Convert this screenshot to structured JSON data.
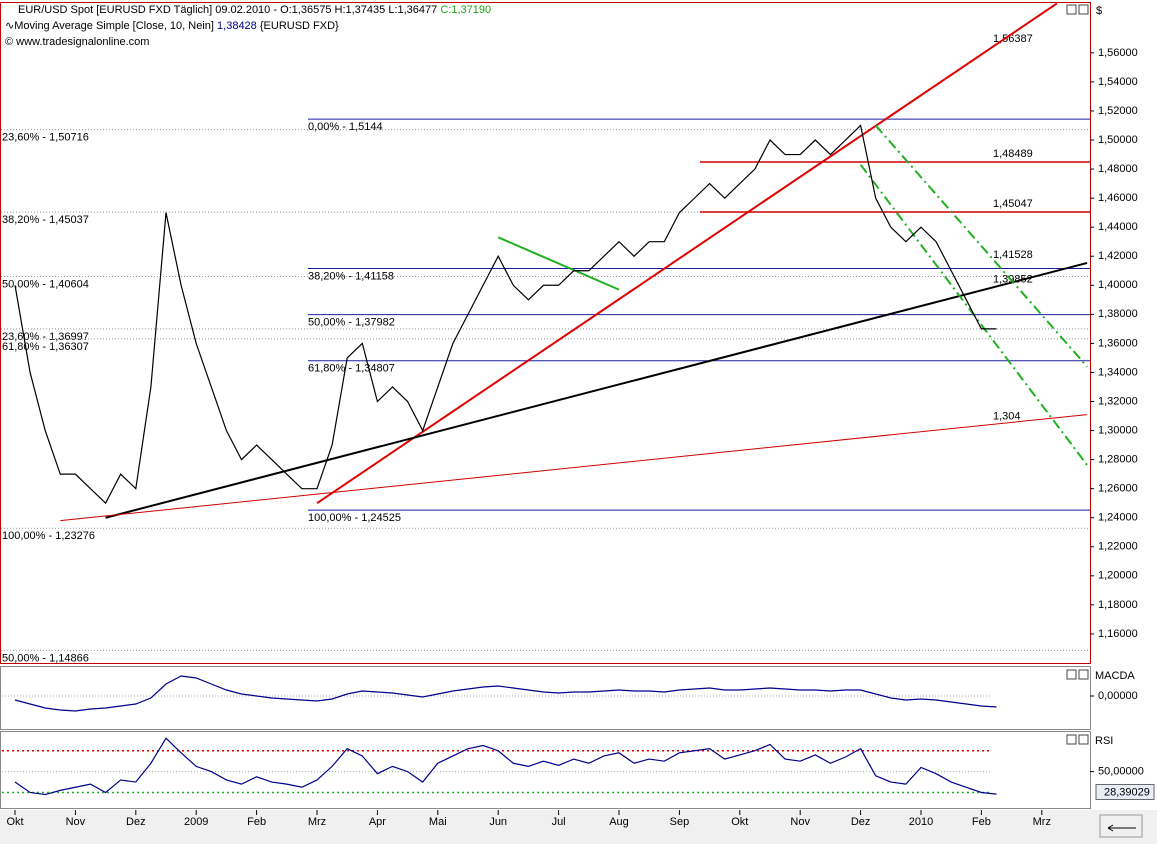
{
  "header": {
    "line1": "EUR/USD Spot [EURUSD FXD  Täglich] 09.02.2010 - O:1,36575 H:1,37435 L:1,36477",
    "close": "C:1,37190",
    "line2": "Moving Average Simple [Close, 10, Nein]",
    "ma_value": "1,38428",
    "ma_source": "{EURUSD FXD}",
    "line3": "© www.tradesignalonline.com",
    "unit": "$"
  },
  "chart_data": [
    {
      "type": "line",
      "categories": [
        "Okt",
        null,
        null,
        null,
        "Nov",
        null,
        null,
        null,
        "Dez",
        null,
        null,
        null,
        "2009",
        null,
        null,
        null,
        "Feb",
        null,
        null,
        null,
        "Mrz",
        null,
        null,
        null,
        "Apr",
        null,
        null,
        null,
        "Mai",
        null,
        null,
        null,
        "Jun",
        null,
        null,
        null,
        "Jul",
        null,
        null,
        null,
        "Aug",
        null,
        null,
        null,
        "Sep",
        null,
        null,
        null,
        "Okt",
        null,
        null,
        null,
        "Nov",
        null,
        null,
        null,
        "Dez",
        null,
        null,
        null,
        "2010",
        null,
        null,
        null,
        "Feb",
        null,
        null,
        null,
        "Mrz",
        null,
        null,
        null
      ],
      "series": [
        {
          "color": "#000000",
          "values": [
            1.4,
            1.34,
            1.3,
            1.27,
            1.27,
            1.26,
            1.25,
            1.27,
            1.26,
            1.33,
            1.45,
            1.4,
            1.36,
            1.33,
            1.3,
            1.28,
            1.29,
            1.28,
            1.27,
            1.26,
            1.26,
            1.29,
            1.35,
            1.36,
            1.32,
            1.33,
            1.32,
            1.3,
            1.33,
            1.36,
            1.38,
            1.4,
            1.42,
            1.4,
            1.39,
            1.4,
            1.4,
            1.41,
            1.41,
            1.42,
            1.43,
            1.42,
            1.43,
            1.43,
            1.45,
            1.46,
            1.47,
            1.46,
            1.47,
            1.48,
            1.5,
            1.49,
            1.49,
            1.5,
            1.49,
            1.5,
            1.51,
            1.46,
            1.44,
            1.43,
            1.44,
            1.43,
            1.41,
            1.39,
            1.37,
            1.37,
            null,
            null,
            null,
            null,
            null,
            null
          ]
        }
      ],
      "ylim": [
        1.14,
        1.595
      ],
      "yticks": [
        {
          "value": 1.16,
          "label": "1,16000"
        },
        {
          "value": 1.18,
          "label": "1,18000"
        },
        {
          "value": 1.2,
          "label": "1,20000"
        },
        {
          "value": 1.22,
          "label": "1,22000"
        },
        {
          "value": 1.24,
          "label": "1,24000"
        },
        {
          "value": 1.26,
          "label": "1,26000"
        },
        {
          "value": 1.28,
          "label": "1,28000"
        },
        {
          "value": 1.3,
          "label": "1,30000"
        },
        {
          "value": 1.32,
          "label": "1,32000"
        },
        {
          "value": 1.34,
          "label": "1,34000"
        },
        {
          "value": 1.36,
          "label": "1,36000"
        },
        {
          "value": 1.38,
          "label": "1,38000"
        },
        {
          "value": 1.4,
          "label": "1,40000"
        },
        {
          "value": 1.42,
          "label": "1,42000"
        },
        {
          "value": 1.44,
          "label": "1,44000"
        },
        {
          "value": 1.46,
          "label": "1,46000"
        },
        {
          "value": 1.48,
          "label": "1,48000"
        },
        {
          "value": 1.5,
          "label": "1,50000"
        },
        {
          "value": 1.52,
          "label": "1,52000"
        },
        {
          "value": 1.54,
          "label": "1,54000"
        },
        {
          "value": 1.56,
          "label": "1,56000"
        }
      ],
      "mid_fib": [
        {
          "value": 1.5144,
          "label": "0,00% - 1,5144"
        },
        {
          "value": 1.41158,
          "label": "38,20% - 1,41158"
        },
        {
          "value": 1.37982,
          "label": "50,00% - 1,37982"
        },
        {
          "value": 1.34807,
          "label": "61,80% - 1,34807"
        },
        {
          "value": 1.24525,
          "label": "100,00% - 1,24525"
        }
      ],
      "left_fib": [
        {
          "value": 1.50716,
          "label": "23,60% - 1,50716"
        },
        {
          "value": 1.45037,
          "label": "38,20% - 1,45037"
        },
        {
          "value": 1.40604,
          "label": "50,00% - 1,40604"
        },
        {
          "value": 1.36997,
          "label": "23,60% - 1,36997"
        },
        {
          "value": 1.36307,
          "label": "61,80% - 1,36307"
        },
        {
          "value": 1.23276,
          "label": "100,00% - 1,23276"
        },
        {
          "value": 1.14866,
          "label": "50,00% - 1,14866"
        }
      ],
      "right_levels": [
        {
          "value": 1.56387,
          "label": "1,56387",
          "color": "#d00000",
          "line": false
        },
        {
          "value": 1.48489,
          "label": "1,48489",
          "color": "#d00000",
          "line": true
        },
        {
          "value": 1.45047,
          "label": "1,45047",
          "color": "#d00000",
          "line": true
        },
        {
          "value": 1.41528,
          "label": "1,41528",
          "color": "#20b020",
          "line": false
        },
        {
          "value": 1.39852,
          "label": "1,39852",
          "color": "#000000",
          "line": false
        },
        {
          "value": 1.304,
          "label": "1,304",
          "color": "#d00000",
          "line": false
        }
      ],
      "trendlines": [
        {
          "color": "#e00000",
          "width": 2,
          "dash": false,
          "points": [
            [
              20,
              1.25
            ],
            [
              69,
              1.594
            ]
          ]
        },
        {
          "color": "#000000",
          "width": 2,
          "dash": false,
          "points": [
            [
              6,
              1.24
            ],
            [
              71,
              1.4154
            ]
          ]
        },
        {
          "color": "#d00000",
          "width": 1,
          "dash": false,
          "points": [
            [
              3,
              1.238
            ],
            [
              71,
              1.311
            ]
          ]
        },
        {
          "color": "#20b020",
          "width": 2,
          "dash": true,
          "points": [
            [
              57,
              1.51
            ],
            [
              71,
              1.344
            ]
          ]
        },
        {
          "color": "#20b020",
          "width": 2,
          "dash": true,
          "points": [
            [
              56,
              1.483
            ],
            [
              71,
              1.2763
            ]
          ]
        },
        {
          "color": "#20b020",
          "width": 2,
          "dash": false,
          "points": [
            [
              32,
              1.433
            ],
            [
              40,
              1.397
            ]
          ]
        }
      ]
    },
    {
      "type": "line",
      "title": "MACDA",
      "series": [
        {
          "color": "#00008b",
          "values": [
            -0.004,
            -0.008,
            -0.012,
            -0.014,
            -0.015,
            -0.013,
            -0.012,
            -0.01,
            -0.008,
            -0.002,
            0.012,
            0.02,
            0.018,
            0.012,
            0.006,
            0.002,
            0,
            -0.002,
            -0.003,
            -0.004,
            -0.005,
            -0.003,
            0.002,
            0.005,
            0.004,
            0.003,
            0.001,
            -0.001,
            0.002,
            0.005,
            0.007,
            0.009,
            0.01,
            0.008,
            0.006,
            0.004,
            0.003,
            0.004,
            0.004,
            0.005,
            0.006,
            0.005,
            0.005,
            0.004,
            0.006,
            0.007,
            0.008,
            0.006,
            0.006,
            0.007,
            0.008,
            0.007,
            0.006,
            0.006,
            0.005,
            0.006,
            0.006,
            0.002,
            -0.002,
            -0.004,
            -0.003,
            -0.004,
            -0.006,
            -0.008,
            -0.01,
            -0.011,
            null,
            null,
            null,
            null,
            null,
            null
          ]
        }
      ],
      "ylim": [
        -0.032,
        0.028
      ],
      "yticks": [
        {
          "value": 0,
          "label": "0,00000"
        }
      ]
    },
    {
      "type": "line",
      "title": "RSI",
      "current": "28,39029",
      "series": [
        {
          "color": "#00008b",
          "values": [
            40,
            30,
            28,
            32,
            35,
            38,
            30,
            42,
            40,
            58,
            82,
            68,
            55,
            50,
            42,
            38,
            45,
            40,
            38,
            35,
            42,
            55,
            72,
            65,
            48,
            55,
            50,
            40,
            58,
            65,
            72,
            75,
            70,
            58,
            55,
            60,
            56,
            62,
            58,
            65,
            68,
            58,
            62,
            60,
            68,
            70,
            72,
            62,
            66,
            70,
            76,
            62,
            60,
            66,
            58,
            64,
            72,
            46,
            40,
            38,
            54,
            48,
            40,
            35,
            30,
            28.39029,
            null,
            null,
            null,
            null,
            null,
            null
          ]
        }
      ],
      "ylim": [
        18,
        87
      ],
      "yticks": [
        {
          "value": 50,
          "label": "50,00000"
        }
      ],
      "levels": [
        {
          "value": 70,
          "color": "#e00000"
        },
        {
          "value": 30,
          "color": "#20b020"
        }
      ]
    }
  ]
}
